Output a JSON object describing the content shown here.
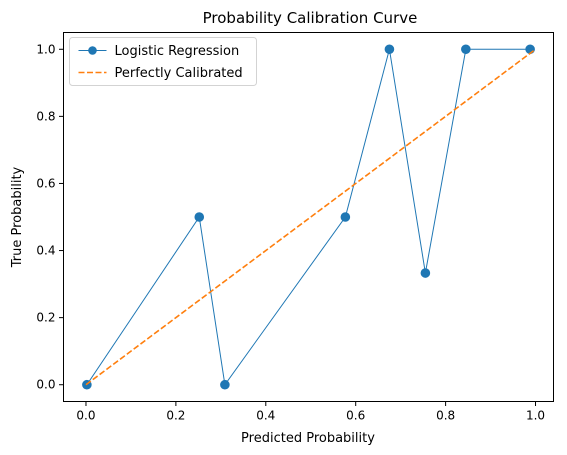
{
  "chart_data": {
    "type": "line",
    "title": "Probability Calibration Curve",
    "xlabel": "Predicted Probability",
    "ylabel": "True Probability",
    "xlim": [
      -0.05,
      1.04
    ],
    "ylim": [
      -0.05,
      1.05
    ],
    "xticks": [
      0.0,
      0.2,
      0.4,
      0.6,
      0.8,
      1.0
    ],
    "yticks": [
      0.0,
      0.2,
      0.4,
      0.6,
      0.8,
      1.0
    ],
    "xtick_labels": [
      "0.0",
      "0.2",
      "0.4",
      "0.6",
      "0.8",
      "1.0"
    ],
    "ytick_labels": [
      "0.0",
      "0.2",
      "0.4",
      "0.6",
      "0.8",
      "1.0"
    ],
    "grid": false,
    "legend_position": "upper-left",
    "series": [
      {
        "name": "Logistic Regression",
        "color": "#1f77b4",
        "style": "solid",
        "marker": "circle",
        "x": [
          0.002,
          0.252,
          0.309,
          0.577,
          0.675,
          0.755,
          0.845,
          0.988
        ],
        "y": [
          0.0,
          0.5,
          0.0,
          0.5,
          1.0,
          0.333,
          1.0,
          1.0
        ]
      },
      {
        "name": "Perfectly Calibrated",
        "color": "#ff7f0e",
        "style": "dashed",
        "marker": "none",
        "x": [
          0.0,
          1.0
        ],
        "y": [
          0.0,
          1.0
        ]
      }
    ]
  }
}
